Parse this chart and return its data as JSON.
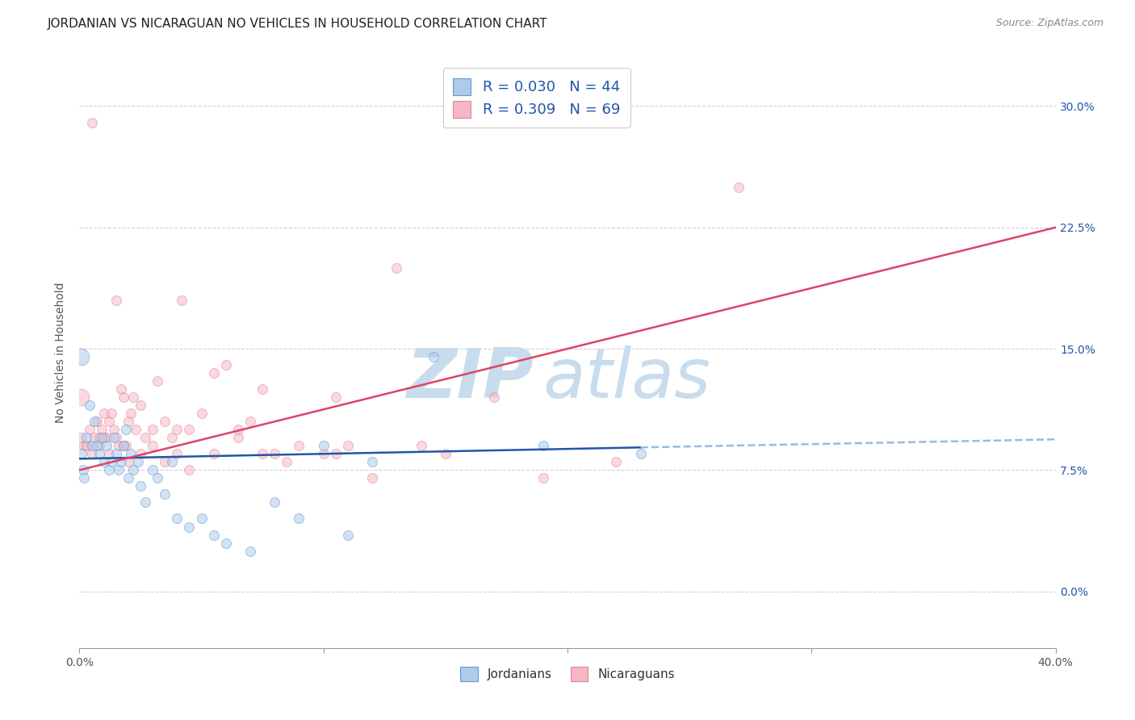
{
  "title": "JORDANIAN VS NICARAGUAN NO VEHICLES IN HOUSEHOLD CORRELATION CHART",
  "source": "Source: ZipAtlas.com",
  "ylabel": "No Vehicles in Household",
  "xlabel_jordanians": "Jordanians",
  "xlabel_nicaraguans": "Nicaraguans",
  "legend_r_jordanian": "R = 0.030",
  "legend_n_jordanian": "N = 44",
  "legend_r_nicaraguan": "R = 0.309",
  "legend_n_nicaraguan": "N = 69",
  "title_color": "#222222",
  "title_fontsize": 11,
  "source_color": "#888888",
  "grid_color": "#cccccc",
  "watermark_color": "#c8dced",
  "jordanian_color": "#aecbec",
  "jordanian_edge": "#6699cc",
  "nicaraguan_color": "#f5b8c4",
  "nicaraguan_edge": "#dd8899",
  "jordan_line_color": "#2255aa",
  "nicara_line_color": "#dd4466",
  "jordan_ext_color": "#99bbdd",
  "xmin": 0.0,
  "xmax": 40.0,
  "ymin": -3.5,
  "ymax": 33.0,
  "xticks": [
    0.0,
    10.0,
    20.0,
    30.0,
    40.0
  ],
  "ytick_vals": [
    0.0,
    7.5,
    15.0,
    22.5,
    30.0
  ],
  "ytick_labels": [
    "0.0%",
    "7.5%",
    "15.0%",
    "22.5%",
    "30.0%"
  ],
  "xtick_labels_bottom": [
    "0.0%",
    "",
    "",
    "",
    "40.0%"
  ],
  "jordanian_x": [
    0.1,
    0.15,
    0.2,
    0.3,
    0.4,
    0.5,
    0.6,
    0.7,
    0.8,
    0.9,
    1.0,
    1.1,
    1.2,
    1.3,
    1.4,
    1.5,
    1.6,
    1.7,
    1.8,
    1.9,
    2.0,
    2.1,
    2.2,
    2.4,
    2.5,
    2.7,
    3.0,
    3.2,
    3.5,
    3.8,
    4.0,
    4.5,
    5.0,
    5.5,
    6.0,
    7.0,
    8.0,
    9.0,
    10.0,
    11.0,
    12.0,
    14.5,
    19.0,
    23.0
  ],
  "jordanian_y": [
    8.5,
    7.5,
    7.0,
    9.5,
    11.5,
    9.0,
    10.5,
    9.0,
    8.5,
    9.5,
    8.0,
    9.0,
    7.5,
    8.0,
    9.5,
    8.5,
    7.5,
    8.0,
    9.0,
    10.0,
    7.0,
    8.5,
    7.5,
    8.0,
    6.5,
    5.5,
    7.5,
    7.0,
    6.0,
    8.0,
    4.5,
    4.0,
    4.5,
    3.5,
    3.0,
    2.5,
    5.5,
    4.5,
    9.0,
    3.5,
    8.0,
    14.5,
    9.0,
    8.5
  ],
  "jordanian_large_x": [
    0.05
  ],
  "jordanian_large_y": [
    14.5
  ],
  "nicaraguan_x": [
    0.1,
    0.2,
    0.3,
    0.4,
    0.5,
    0.6,
    0.7,
    0.8,
    0.9,
    1.0,
    1.1,
    1.2,
    1.3,
    1.4,
    1.5,
    1.6,
    1.7,
    1.8,
    1.9,
    2.0,
    2.1,
    2.2,
    2.3,
    2.5,
    2.7,
    3.0,
    3.2,
    3.5,
    3.8,
    4.0,
    4.2,
    4.5,
    5.0,
    5.5,
    6.0,
    6.5,
    7.0,
    7.5,
    8.0,
    9.0,
    10.0,
    10.5,
    11.0,
    12.0,
    13.0,
    14.0,
    15.0,
    17.0,
    19.0,
    22.0,
    0.3,
    0.5,
    0.8,
    1.0,
    1.2,
    1.5,
    1.8,
    2.0,
    2.5,
    3.0,
    3.5,
    4.0,
    4.5,
    5.5,
    6.5,
    7.5,
    8.5,
    10.5,
    27.0
  ],
  "nicaraguan_y": [
    9.5,
    9.0,
    9.0,
    10.0,
    29.0,
    9.5,
    10.5,
    9.0,
    10.0,
    11.0,
    9.5,
    10.5,
    11.0,
    10.0,
    9.5,
    9.0,
    12.5,
    12.0,
    9.0,
    10.5,
    11.0,
    12.0,
    10.0,
    11.5,
    9.5,
    10.0,
    13.0,
    10.5,
    9.5,
    10.0,
    18.0,
    10.0,
    11.0,
    13.5,
    14.0,
    9.5,
    10.5,
    12.5,
    8.5,
    9.0,
    8.5,
    12.0,
    9.0,
    7.0,
    20.0,
    9.0,
    8.5,
    12.0,
    7.0,
    8.0,
    9.0,
    8.5,
    9.5,
    9.5,
    8.5,
    18.0,
    9.0,
    8.0,
    8.5,
    9.0,
    8.0,
    8.5,
    7.5,
    8.5,
    10.0,
    8.5,
    8.0,
    8.5,
    25.0
  ],
  "nicaraguan_large_x": [
    0.05
  ],
  "nicaraguan_large_y": [
    12.0
  ],
  "jordan_line_x0": 0.0,
  "jordan_line_y0": 8.2,
  "jordan_line_x1": 23.0,
  "jordan_line_y1": 8.9,
  "jordan_dash_x0": 23.0,
  "jordan_dash_y0": 8.9,
  "jordan_dash_x1": 40.0,
  "jordan_dash_y1": 9.4,
  "nicara_line_x0": 0.0,
  "nicara_line_y0": 7.5,
  "nicara_line_x1": 40.0,
  "nicara_line_y1": 22.5,
  "marker_size": 75,
  "marker_size_large": 220,
  "alpha": 0.55,
  "legend_color": "#2255aa"
}
